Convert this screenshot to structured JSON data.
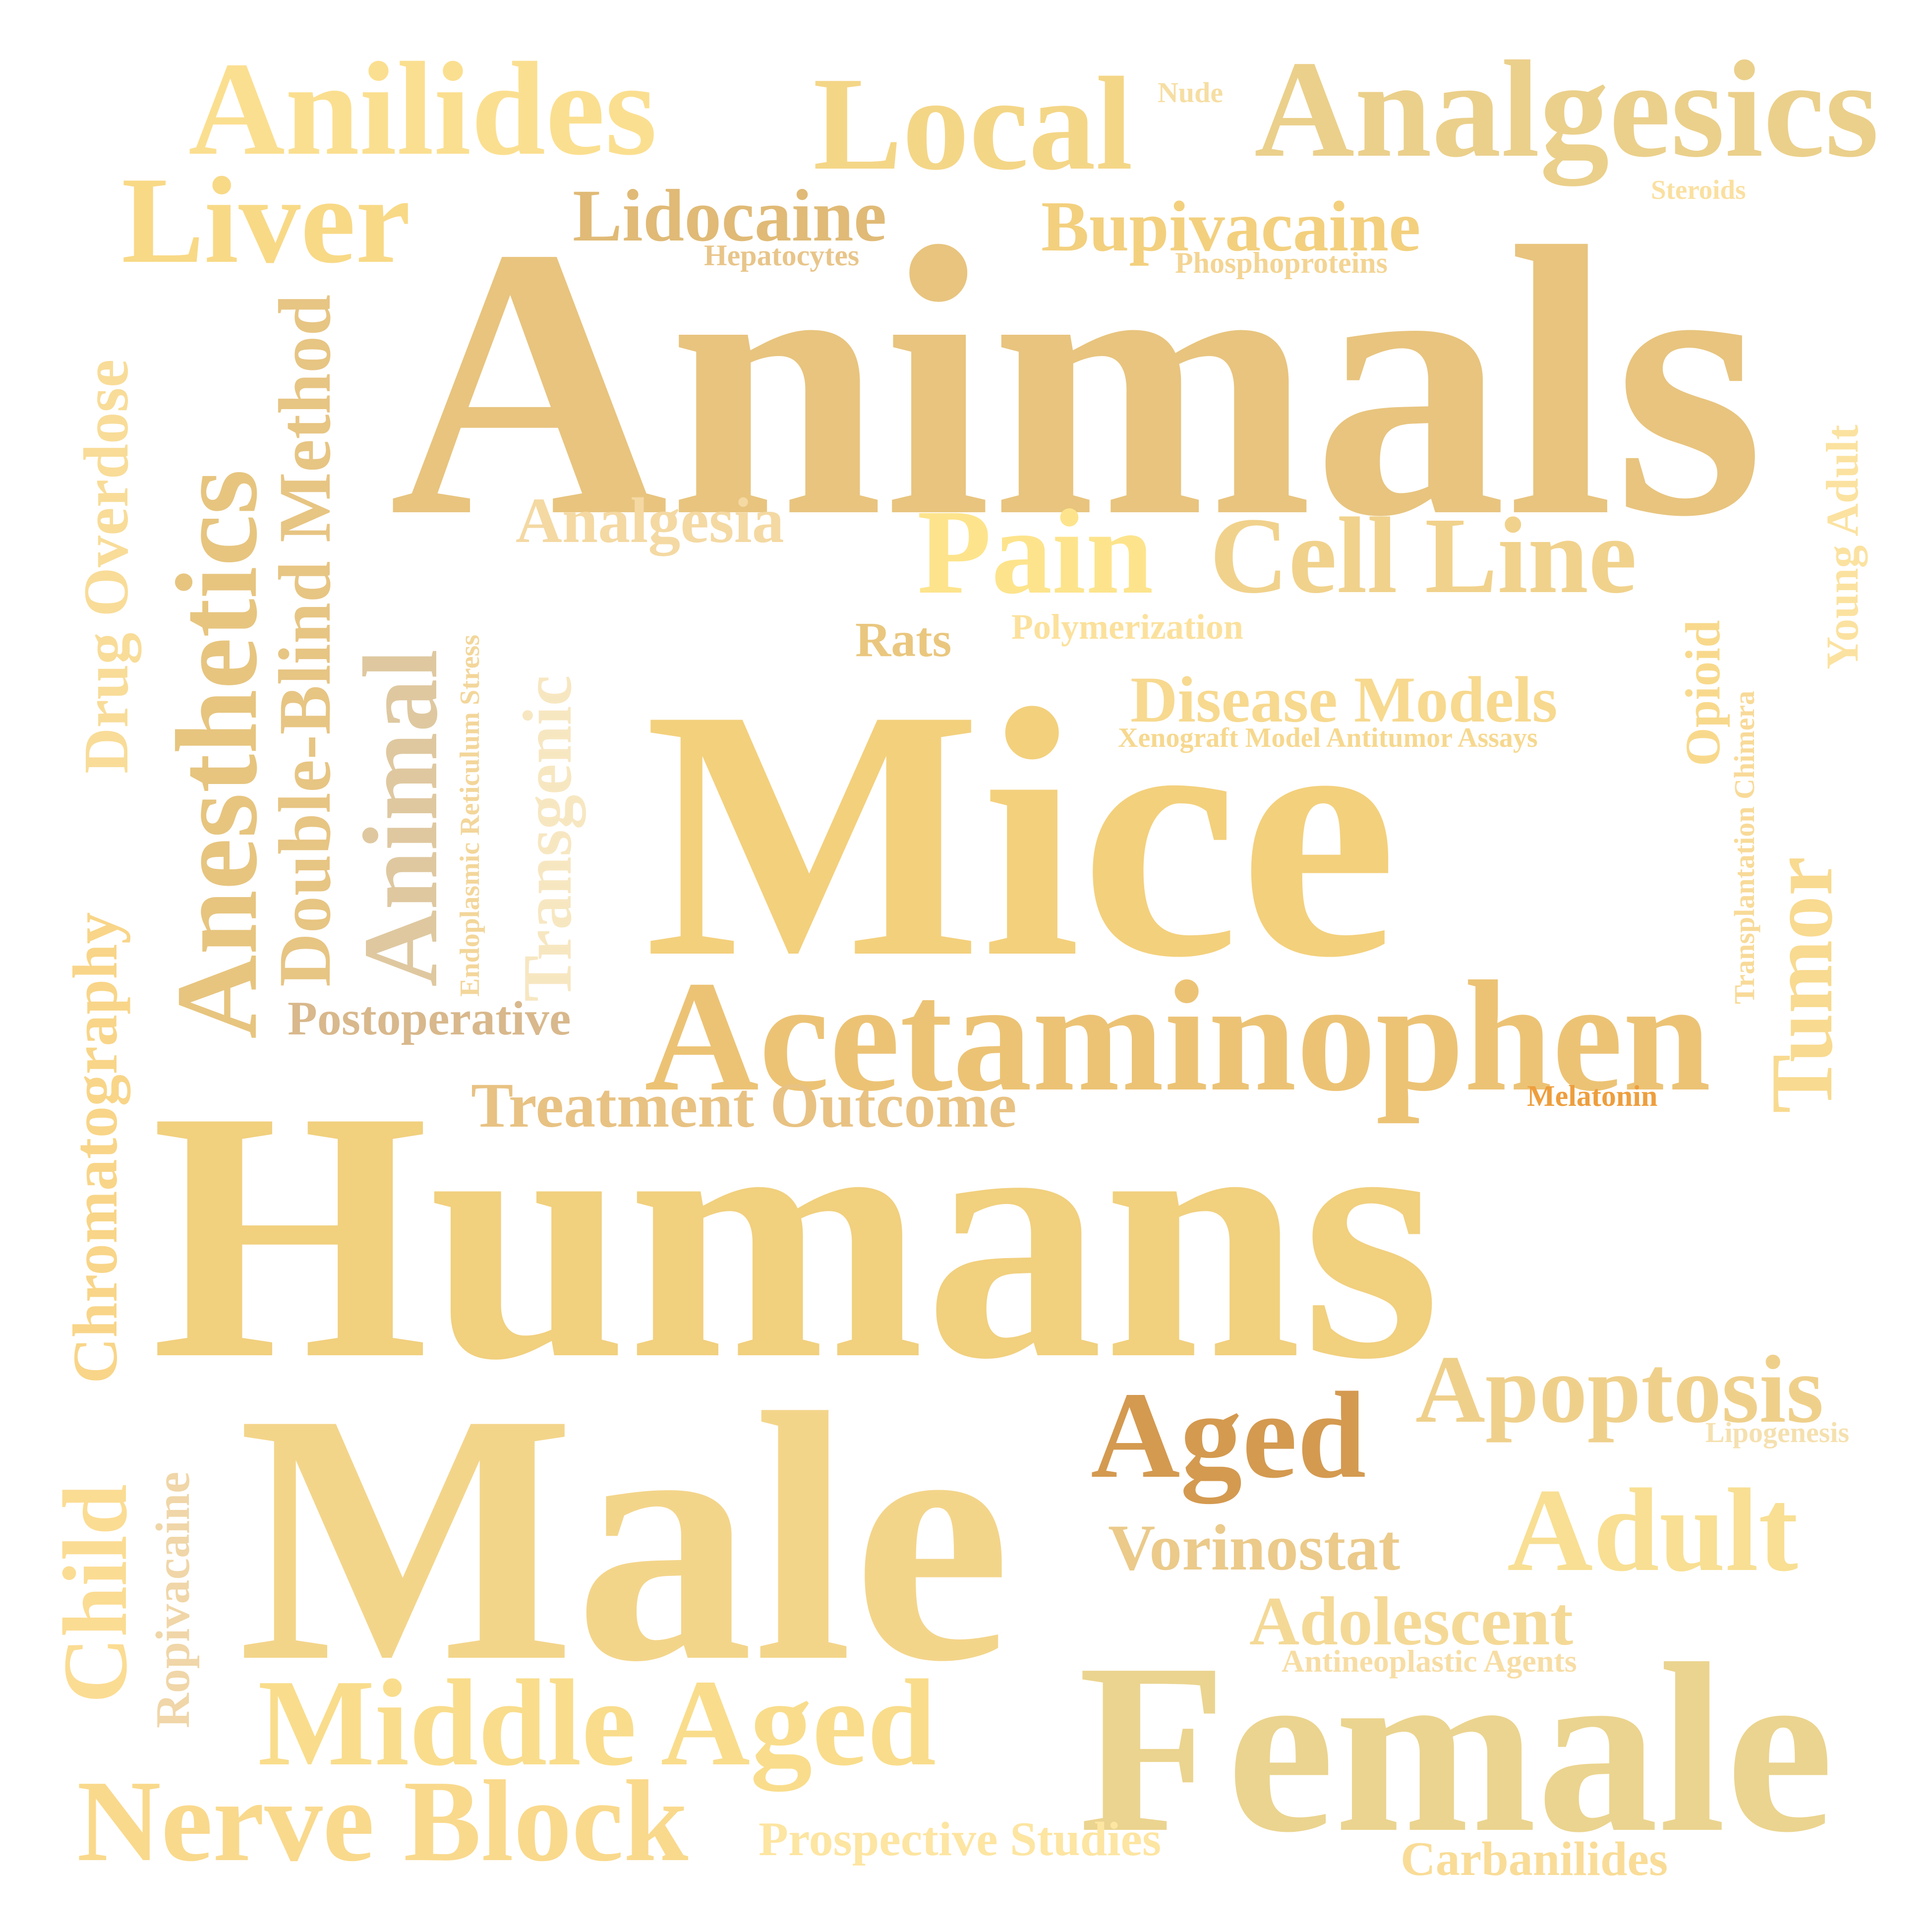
{
  "words": [
    {
      "text": "Animals",
      "color": "#e8c47e"
    },
    {
      "text": "Mice",
      "color": "#f3d07c"
    },
    {
      "text": "Humans",
      "color": "#f1d07e"
    },
    {
      "text": "Male",
      "color": "#f3d58a"
    },
    {
      "text": "Female",
      "color": "#ebd48f"
    },
    {
      "text": "Acetaminophen",
      "color": "#ecc375"
    },
    {
      "text": "Analgesics",
      "color": "#ebd08b"
    },
    {
      "text": "Anilides",
      "color": "#fbdf90"
    },
    {
      "text": "Local",
      "color": "#f4d687"
    },
    {
      "text": "Liver",
      "color": "#f8d986"
    },
    {
      "text": "Lidocaine",
      "color": "#e0ba76"
    },
    {
      "text": "Bupivacaine",
      "color": "#f3d07e"
    },
    {
      "text": "Nude",
      "color": "#f6dea3"
    },
    {
      "text": "Steroids",
      "color": "#fae0a0"
    },
    {
      "text": "Hepatocytes",
      "color": "#e8c58a"
    },
    {
      "text": "Phosphoproteins",
      "color": "#f3d493"
    },
    {
      "text": "Anesthetics",
      "color": "#e7c57f"
    },
    {
      "text": "Chromatography",
      "color": "#f8d588"
    },
    {
      "text": "Drug Overdose",
      "color": "#f8dc98"
    },
    {
      "text": "Double-Blind Method",
      "color": "#e7c583"
    },
    {
      "text": "Animal",
      "color": "#dfc8a0"
    },
    {
      "text": "Endoplasmic Reticulum Stress",
      "color": "#f3d69a"
    },
    {
      "text": "Transgenic",
      "color": "#f7e7c1"
    },
    {
      "text": "Analgesia",
      "color": "#f4d9a3"
    },
    {
      "text": "Pain",
      "color": "#fde48c"
    },
    {
      "text": "Cell Line",
      "color": "#f1d28c"
    },
    {
      "text": "Rats",
      "color": "#eac77f"
    },
    {
      "text": "Polymerization",
      "color": "#fbe19c"
    },
    {
      "text": "Disease Models",
      "color": "#f7d98f"
    },
    {
      "text": "Xenograft Model Antitumor Assays",
      "color": "#f6d88f"
    },
    {
      "text": "Opioid",
      "color": "#f8d98c"
    },
    {
      "text": "Transplantation Chimera",
      "color": "#f8da98"
    },
    {
      "text": "Tumor",
      "color": "#f8da90"
    },
    {
      "text": "Young Adult",
      "color": "#fbe2a0"
    },
    {
      "text": "Postoperative",
      "color": "#d8b88c"
    },
    {
      "text": "Treatment Outcome",
      "color": "#e8c283"
    },
    {
      "text": "Melatonin",
      "color": "#ee9e3d"
    },
    {
      "text": "Aged",
      "color": "#d49a50"
    },
    {
      "text": "Apoptosis",
      "color": "#efd08b"
    },
    {
      "text": "Lipogenesis",
      "color": "#f5e0af"
    },
    {
      "text": "Adult",
      "color": "#f8df93"
    },
    {
      "text": "Vorinostat",
      "color": "#ebca8a"
    },
    {
      "text": "Adolescent",
      "color": "#f4d996"
    },
    {
      "text": "Antineoplastic Agents",
      "color": "#f7dda4"
    },
    {
      "text": "Child",
      "color": "#fbdc93"
    },
    {
      "text": "Ropivacaine",
      "color": "#f0d6a8"
    },
    {
      "text": "Middle Aged",
      "color": "#f9dd8c"
    },
    {
      "text": "Nerve Block",
      "color": "#f9d98c"
    },
    {
      "text": "Prospective Studies",
      "color": "#fde5a2"
    },
    {
      "text": "Carbanilides",
      "color": "#f9dc97"
    }
  ]
}
